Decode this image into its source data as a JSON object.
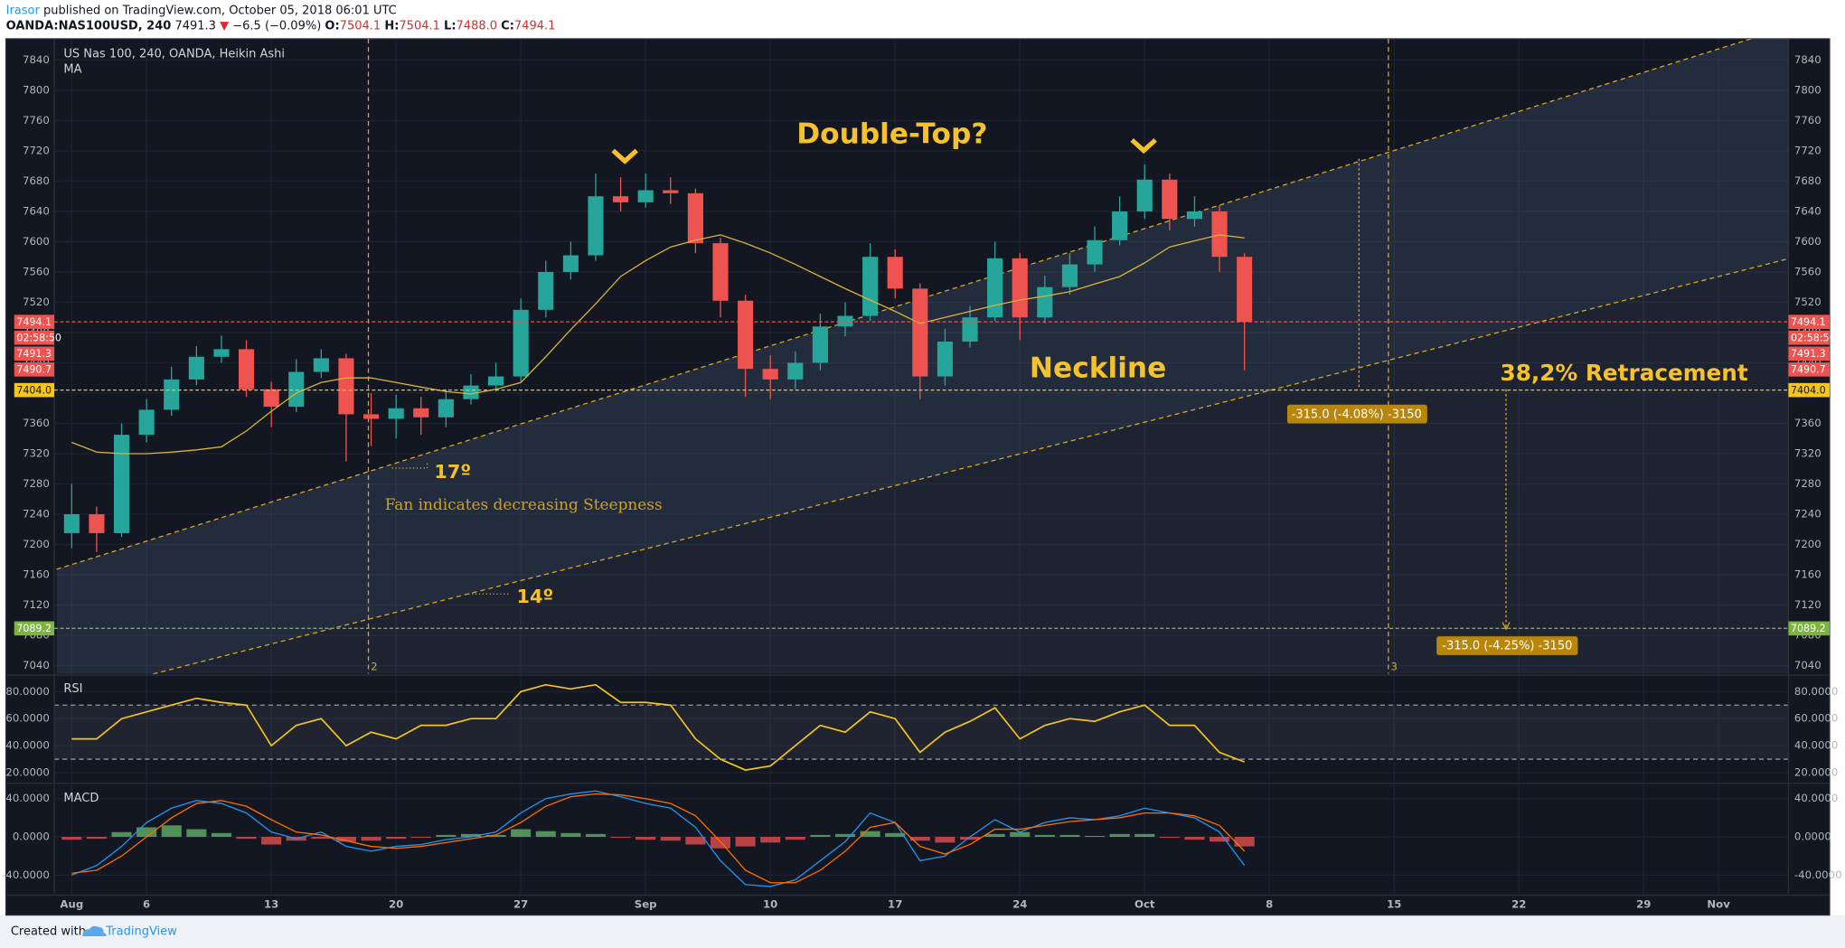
{
  "header": {
    "author": "Irasor",
    "byline": "published on TradingView.com, October 05, 2018 06:01 UTC",
    "symbol": "OANDA:NAS100USD, 240",
    "last": "7491.3",
    "arrow": "▼",
    "change": "−6.5 (−0.09%)",
    "ohlc": [
      [
        "O:",
        "7504.1"
      ],
      [
        "H:",
        "7504.1"
      ],
      [
        "L:",
        "7488.0"
      ],
      [
        "C:",
        "7494.1"
      ]
    ]
  },
  "footer": {
    "text": "Created with",
    "brand": "TradingView"
  },
  "chart_data": [
    {
      "type": "candlestick",
      "title": "US Nas 100, 240, OANDA, Heikin Ashi",
      "x": [
        0,
        1,
        2,
        3,
        4,
        5,
        6,
        7,
        8,
        9,
        10,
        11,
        12,
        13,
        14,
        15,
        16,
        17,
        18,
        19,
        20,
        21,
        22,
        23,
        24,
        25,
        26,
        27,
        28,
        29,
        30,
        31,
        32,
        33,
        34,
        35,
        36,
        37,
        38,
        39,
        40,
        41,
        42,
        43,
        44,
        45,
        46,
        47
      ],
      "open": [
        7215,
        7240,
        7215,
        7345,
        7378,
        7418,
        7448,
        7458,
        7405,
        7382,
        7428,
        7446,
        7372,
        7366,
        7380,
        7368,
        7392,
        7410,
        7422,
        7510,
        7560,
        7582,
        7660,
        7652,
        7668,
        7664,
        7598,
        7522,
        7432,
        7418,
        7440,
        7488,
        7502,
        7580,
        7538,
        7422,
        7468,
        7500,
        7578,
        7500,
        7540,
        7570,
        7602,
        7640,
        7682,
        7630,
        7640,
        7580
      ],
      "high": [
        7280,
        7250,
        7360,
        7392,
        7435,
        7462,
        7476,
        7470,
        7415,
        7445,
        7458,
        7452,
        7400,
        7398,
        7395,
        7405,
        7425,
        7440,
        7525,
        7575,
        7600,
        7690,
        7685,
        7690,
        7685,
        7670,
        7605,
        7530,
        7450,
        7455,
        7505,
        7520,
        7598,
        7590,
        7545,
        7485,
        7515,
        7600,
        7585,
        7555,
        7585,
        7620,
        7660,
        7702,
        7690,
        7660,
        7648,
        7585
      ],
      "low": [
        7195,
        7190,
        7210,
        7335,
        7370,
        7410,
        7440,
        7395,
        7355,
        7375,
        7420,
        7310,
        7330,
        7340,
        7345,
        7355,
        7385,
        7402,
        7415,
        7500,
        7550,
        7575,
        7640,
        7645,
        7650,
        7585,
        7500,
        7395,
        7392,
        7405,
        7430,
        7475,
        7495,
        7525,
        7392,
        7410,
        7460,
        7495,
        7470,
        7492,
        7530,
        7560,
        7595,
        7630,
        7615,
        7620,
        7560,
        7430
      ],
      "close": [
        7240,
        7215,
        7345,
        7378,
        7418,
        7448,
        7458,
        7405,
        7382,
        7428,
        7446,
        7372,
        7366,
        7380,
        7368,
        7392,
        7410,
        7422,
        7510,
        7560,
        7582,
        7660,
        7652,
        7668,
        7664,
        7598,
        7522,
        7432,
        7418,
        7440,
        7488,
        7502,
        7580,
        7538,
        7422,
        7468,
        7500,
        7578,
        7500,
        7540,
        7570,
        7602,
        7640,
        7682,
        7630,
        7640,
        7580,
        7494
      ],
      "up_color": "#26a69a",
      "down_color": "#ef5350",
      "series": [
        {
          "name": "MA",
          "color": "#d9b23a",
          "values": [
            7335,
            7322,
            7320,
            7320,
            7322,
            7325,
            7329,
            7350,
            7376,
            7400,
            7414,
            7420,
            7420,
            7414,
            7408,
            7402,
            7399,
            7405,
            7414,
            7448,
            7484,
            7518,
            7554,
            7575,
            7593,
            7602,
            7609,
            7598,
            7585,
            7570,
            7554,
            7538,
            7523,
            7508,
            7492,
            7500,
            7508,
            7516,
            7523,
            7528,
            7534,
            7544,
            7554,
            7572,
            7593,
            7601,
            7609,
            7605
          ]
        }
      ],
      "xlim": [
        -0.7,
        68.8
      ],
      "xticks": [
        {
          "value": 0,
          "label": "Aug"
        },
        {
          "value": 3,
          "label": "6"
        },
        {
          "value": 8,
          "label": "13"
        },
        {
          "value": 13,
          "label": "20"
        },
        {
          "value": 18,
          "label": "27"
        },
        {
          "value": 23,
          "label": "Sep"
        },
        {
          "value": 28,
          "label": "10"
        },
        {
          "value": 33,
          "label": "17"
        },
        {
          "value": 38,
          "label": "24"
        },
        {
          "value": 43,
          "label": "Oct"
        },
        {
          "value": 48,
          "label": "8"
        },
        {
          "value": 53,
          "label": "15"
        },
        {
          "value": 58,
          "label": "22"
        },
        {
          "value": 63,
          "label": "29"
        },
        {
          "value": 66,
          "label": "Nov"
        }
      ],
      "ylim": [
        7029,
        7868
      ],
      "yticks": [
        7040,
        7080,
        7120,
        7160,
        7200,
        7240,
        7280,
        7320,
        7360,
        7400,
        7440,
        7480,
        7520,
        7560,
        7600,
        7640,
        7680,
        7720,
        7760,
        7800,
        7840
      ],
      "grid": true,
      "levels": [
        {
          "value": 7494.1,
          "label": "7494.1",
          "color": "#ef5350"
        },
        {
          "value": 7404,
          "label": "7404.0",
          "color": "#f5c518"
        },
        {
          "value": 7089.2,
          "label": "7089.2",
          "color": "#7cb342"
        }
      ],
      "countdown": "02:58:50",
      "stacked_labels": [
        7491.3,
        7490.7
      ],
      "annotations": {
        "headline": "Double-Top?",
        "neckline": "Neckline",
        "retracement": "38,2% Retracement",
        "fan_note": "Fan indicates decreasing Steepness",
        "angle_upper": "17º",
        "angle_lower": "14º",
        "measure_1": "-315.0 (-4.08%) -3150",
        "measure_2": "-315.0 (-4.25%) -3150",
        "marker_1": "2",
        "marker_2": "3"
      }
    },
    {
      "type": "line",
      "title": "RSI",
      "color": "#f5c518",
      "x": [
        0,
        1,
        2,
        3,
        4,
        5,
        6,
        7,
        8,
        9,
        10,
        11,
        12,
        13,
        14,
        15,
        16,
        17,
        18,
        19,
        20,
        21,
        22,
        23,
        24,
        25,
        26,
        27,
        28,
        29,
        30,
        31,
        32,
        33,
        34,
        35,
        36,
        37,
        38,
        39,
        40,
        41,
        42,
        43,
        44,
        45,
        46,
        47
      ],
      "values": [
        45,
        45,
        60,
        65,
        70,
        75,
        72,
        70,
        40,
        55,
        60,
        40,
        50,
        45,
        55,
        55,
        60,
        60,
        80,
        85,
        82,
        85,
        72,
        72,
        70,
        45,
        30,
        22,
        25,
        40,
        55,
        50,
        65,
        60,
        35,
        50,
        58,
        68,
        45,
        55,
        60,
        58,
        65,
        70,
        55,
        55,
        35,
        28
      ],
      "ylim": [
        13,
        91.3
      ],
      "yticks": [
        {
          "value": 20,
          "label": "20.0000"
        },
        {
          "value": 40,
          "label": "40.0000"
        },
        {
          "value": 60,
          "label": "60.0000"
        },
        {
          "value": 80,
          "label": "80.0000"
        }
      ],
      "bands": [
        30,
        70
      ]
    },
    {
      "type": "bar",
      "title": "MACD",
      "positive_color": "#66bb6a",
      "negative_color": "#ef5350",
      "x": [
        0,
        1,
        2,
        3,
        4,
        5,
        6,
        7,
        8,
        9,
        10,
        11,
        12,
        13,
        14,
        15,
        16,
        17,
        18,
        19,
        20,
        21,
        22,
        23,
        24,
        25,
        26,
        27,
        28,
        29,
        30,
        31,
        32,
        33,
        34,
        35,
        36,
        37,
        38,
        39,
        40,
        41,
        42,
        43,
        44,
        45,
        46,
        47
      ],
      "values": [
        -3,
        -2,
        5,
        10,
        12,
        8,
        4,
        -2,
        -8,
        -4,
        -2,
        -5,
        -4,
        -2,
        -1,
        2,
        3,
        2,
        8,
        6,
        4,
        3,
        -1,
        -3,
        -4,
        -8,
        -12,
        -10,
        -6,
        -3,
        2,
        3,
        6,
        4,
        -4,
        -6,
        -3,
        3,
        5,
        2,
        2,
        1,
        3,
        3,
        -1,
        -3,
        -5,
        -10
      ],
      "series": [
        {
          "color": "#2196f3",
          "values": [
            -40,
            -30,
            -10,
            15,
            30,
            38,
            35,
            25,
            5,
            -2,
            5,
            -10,
            -15,
            -10,
            -8,
            -3,
            0,
            5,
            25,
            40,
            45,
            48,
            42,
            35,
            30,
            10,
            -25,
            -50,
            -52,
            -45,
            -25,
            -5,
            25,
            15,
            -25,
            -20,
            0,
            18,
            5,
            15,
            20,
            18,
            22,
            30,
            25,
            20,
            5,
            -30
          ]
        },
        {
          "color": "#ff6d00",
          "values": [
            -38,
            -35,
            -20,
            0,
            20,
            35,
            38,
            32,
            18,
            5,
            2,
            -4,
            -10,
            -12,
            -10,
            -6,
            -2,
            2,
            15,
            32,
            42,
            45,
            44,
            40,
            35,
            22,
            -5,
            -35,
            -48,
            -48,
            -35,
            -15,
            10,
            15,
            -10,
            -18,
            -8,
            8,
            8,
            12,
            16,
            18,
            20,
            25,
            25,
            22,
            12,
            -15
          ]
        }
      ],
      "ylim": [
        -59.7,
        54.8
      ],
      "yticks": [
        {
          "value": -40,
          "label": "-40.0000"
        },
        {
          "value": 0,
          "label": "0.0000"
        },
        {
          "value": 40,
          "label": "40.0000"
        }
      ]
    }
  ]
}
